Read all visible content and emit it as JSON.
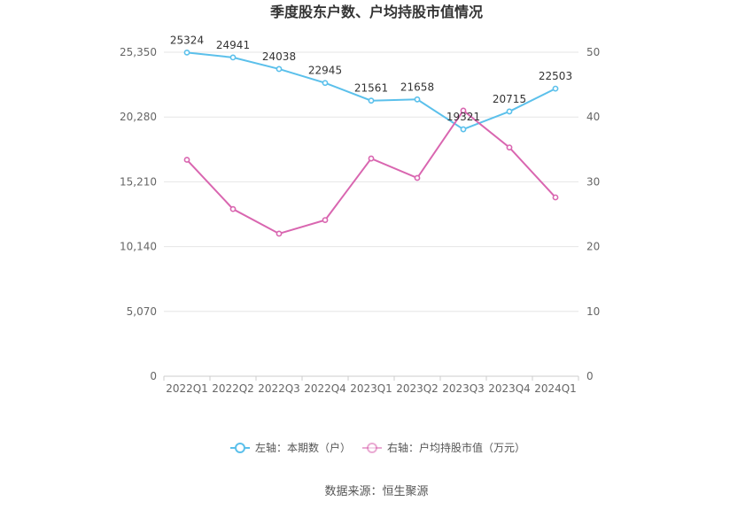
{
  "chart_data": {
    "type": "line",
    "title": "季度股东户数、户均持股市值情况",
    "categories": [
      "2022Q1",
      "2022Q2",
      "2022Q3",
      "2022Q4",
      "2023Q1",
      "2023Q2",
      "2023Q3",
      "2023Q4",
      "2024Q1"
    ],
    "left_axis": {
      "ticks": [
        "0",
        "5,070",
        "10,140",
        "15,210",
        "20,280",
        "25,350"
      ],
      "ylim": [
        0,
        25350
      ]
    },
    "right_axis": {
      "ticks": [
        "0",
        "10",
        "20",
        "30",
        "40",
        "50"
      ],
      "ylim": [
        0,
        50
      ]
    },
    "series": [
      {
        "name": "左轴：本期数（户）",
        "axis": "left",
        "color": "#5bc0eb",
        "values": [
          25324,
          24941,
          24038,
          22945,
          21561,
          21658,
          19321,
          20715,
          22503
        ],
        "labels": [
          "25324",
          "24941",
          "24038",
          "22945",
          "21561",
          "21658",
          "19321",
          "20715",
          "22503"
        ]
      },
      {
        "name": "右轴：户均持股市值（万元）",
        "axis": "right",
        "color": "#d966b0",
        "values": [
          33.4,
          25.8,
          22.0,
          24.1,
          33.6,
          30.6,
          41.0,
          35.3,
          27.6
        ]
      }
    ],
    "grid": true,
    "legend_position": "bottom-center"
  },
  "footer": {
    "source": "数据来源：恒生聚源"
  }
}
